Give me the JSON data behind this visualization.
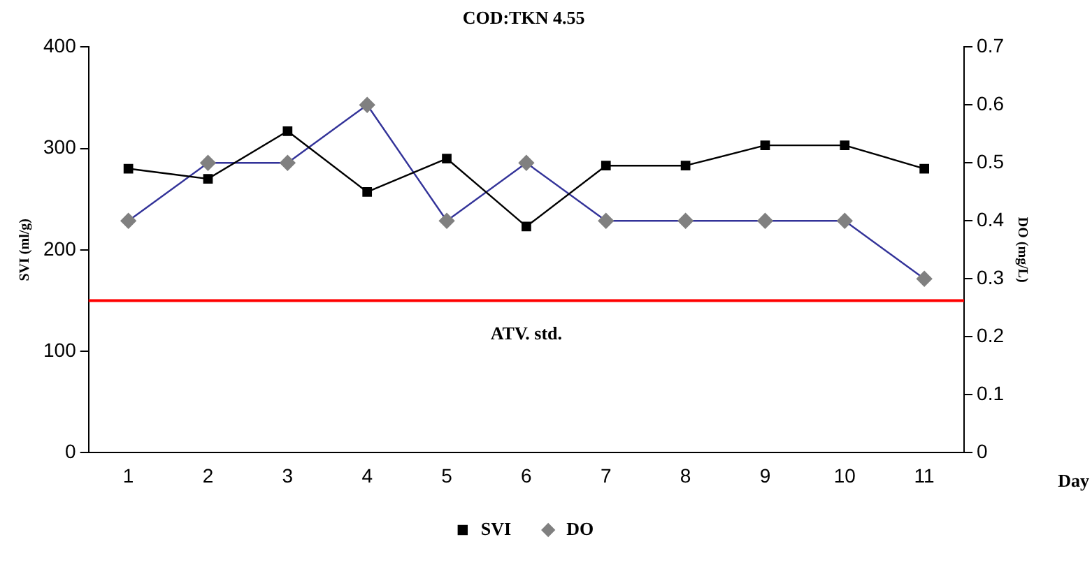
{
  "chart_data": {
    "type": "line",
    "title": "COD:TKN 4.55",
    "xlabel": "Day",
    "ylabel": "SVI (ml/g)",
    "y2label": "DO (mg/L)",
    "categories": [
      "1",
      "2",
      "3",
      "4",
      "5",
      "6",
      "7",
      "8",
      "9",
      "10",
      "11"
    ],
    "series": [
      {
        "name": "SVI",
        "color": "#000000",
        "marker": "square",
        "values": [
          280,
          270,
          317,
          257,
          290,
          223,
          283,
          283,
          303,
          303,
          280
        ]
      },
      {
        "name": "DO",
        "color": "#333399",
        "marker": "diamond",
        "axis": "y2",
        "values": [
          0.4,
          0.5,
          0.5,
          0.6,
          0.4,
          0.5,
          0.4,
          0.4,
          0.4,
          0.4,
          0.3
        ]
      }
    ],
    "ylim": [
      0,
      400
    ],
    "yticks": [
      0,
      100,
      200,
      300,
      400
    ],
    "y2lim": [
      0,
      0.7
    ],
    "y2ticks": [
      0,
      0.1,
      0.2,
      0.3,
      0.4,
      0.5,
      0.6,
      0.7
    ],
    "ref_lines": [
      {
        "axis": "y",
        "value": 150,
        "label": "ATV. std.",
        "color": "#ff0000"
      }
    ],
    "grid": false,
    "legend": "bottom",
    "line_style": "solid"
  }
}
